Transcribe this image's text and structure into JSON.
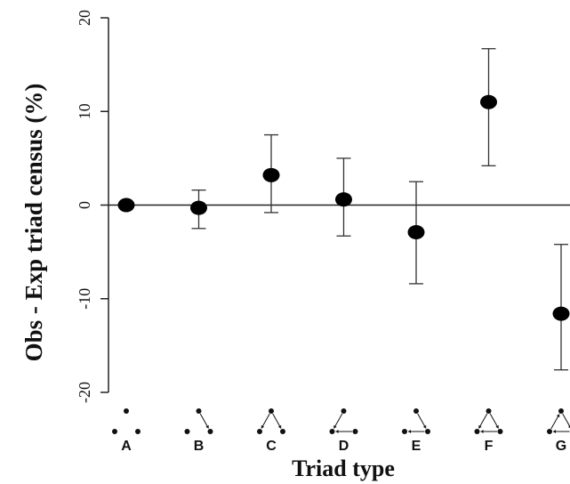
{
  "chart_data": {
    "type": "scatter",
    "title": "",
    "xlabel": "Triad type",
    "ylabel": "Obs - Exp triad census (%)",
    "ylim": [
      -20,
      20
    ],
    "yticks": [
      20,
      10,
      0,
      -10,
      -20
    ],
    "ytick_labels": [
      "20",
      "10",
      "0",
      "-10",
      "-20"
    ],
    "categories": [
      "A",
      "B",
      "C",
      "D",
      "E",
      "F",
      "G"
    ],
    "values": [
      0.0,
      -0.3,
      3.2,
      0.6,
      -2.9,
      11.0,
      -11.6
    ],
    "error_low": [
      0.0,
      -2.5,
      -0.8,
      -3.3,
      -8.4,
      4.2,
      -17.6
    ],
    "error_high": [
      0.0,
      1.6,
      7.5,
      5.0,
      2.5,
      16.7,
      -4.2
    ],
    "reference_line": 0,
    "marker_color": "#000000",
    "triad_icons": [
      "empty-triad-icon",
      "single-edge-triad-icon",
      "out-star-triad-icon",
      "two-path-triad-icon",
      "in-star-triad-icon",
      "transitive-triad-icon",
      "cyclic-triad-icon"
    ]
  }
}
